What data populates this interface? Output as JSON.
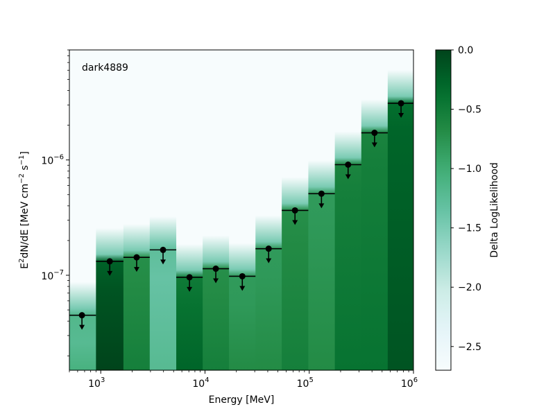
{
  "chart_data": {
    "type": "bar",
    "annotation": "dark4889",
    "xlabel": "Energy [MeV]",
    "ylabel_parts": {
      "pre": "E",
      "sup1": "2",
      "mid": "dN/dE [MeV cm",
      "sup2": "−2",
      "mid2": " s",
      "sup3": "−1",
      "post": "]"
    },
    "x_scale": "log",
    "y_scale": "log",
    "xlim": [
      500,
      1000000
    ],
    "ylim": [
      1.5e-08,
      9e-06
    ],
    "x_ticks": [
      {
        "value": 1000,
        "base": "10",
        "exp": "3"
      },
      {
        "value": 10000,
        "base": "10",
        "exp": "4"
      },
      {
        "value": 100000,
        "base": "10",
        "exp": "5"
      },
      {
        "value": 1000000,
        "base": "10",
        "exp": "6"
      }
    ],
    "y_ticks": [
      {
        "value": 1e-07,
        "base": "10",
        "exp": "−7"
      },
      {
        "value": 1e-06,
        "base": "10",
        "exp": "−6"
      }
    ],
    "grid": false,
    "legend": "none",
    "upper_limits": {
      "series_marker": "upper-limit",
      "bins": [
        {
          "e_min": 500,
          "e_max": 900,
          "e_center": 660,
          "ul": 4.5e-08
        },
        {
          "e_min": 900,
          "e_max": 1650,
          "e_center": 1220,
          "ul": 1.32e-07
        },
        {
          "e_min": 1650,
          "e_max": 2950,
          "e_center": 2210,
          "ul": 1.43e-07
        },
        {
          "e_min": 2950,
          "e_max": 5300,
          "e_center": 3960,
          "ul": 1.66e-07
        },
        {
          "e_min": 5300,
          "e_max": 9500,
          "e_center": 7100,
          "ul": 9.6e-08
        },
        {
          "e_min": 9500,
          "e_max": 17000,
          "e_center": 12700,
          "ul": 1.14e-07
        },
        {
          "e_min": 17000,
          "e_max": 30500,
          "e_center": 22800,
          "ul": 9.8e-08
        },
        {
          "e_min": 30500,
          "e_max": 54500,
          "e_center": 40800,
          "ul": 1.7e-07
        },
        {
          "e_min": 54500,
          "e_max": 98000,
          "e_center": 73000,
          "ul": 3.65e-07
        },
        {
          "e_min": 98000,
          "e_max": 176000,
          "e_center": 131000,
          "ul": 5.1e-07
        },
        {
          "e_min": 176000,
          "e_max": 316000,
          "e_center": 236000,
          "ul": 9.1e-07
        },
        {
          "e_min": 316000,
          "e_max": 566000,
          "e_center": 423000,
          "ul": 1.72e-06
        },
        {
          "e_min": 566000,
          "e_max": 1000000,
          "e_center": 760000,
          "ul": 3.1e-06
        }
      ]
    },
    "likelihood_profile": {
      "description_values": "Delta LogLikelihood per bin vs flux",
      "bin_base_intensity": [
        0.55,
        0.95,
        0.75,
        0.5,
        0.85,
        0.75,
        0.7,
        0.7,
        0.75,
        0.7,
        0.8,
        0.8,
        0.9
      ],
      "bin_ts_curvature": [
        1.0,
        0.9,
        0.95,
        1.1,
        0.85,
        0.9,
        0.9,
        0.9,
        1.0,
        1.0,
        1.0,
        1.0,
        1.0
      ]
    },
    "colorbar": {
      "label": "Delta LogLikelihood",
      "min": -2.7,
      "max": 0.0,
      "ticks": [
        "0.0",
        "−0.5",
        "−1.0",
        "−1.5",
        "−2.0",
        "−2.5"
      ],
      "tick_values": [
        0.0,
        -0.5,
        -1.0,
        -1.5,
        -2.0,
        -2.5
      ],
      "colormap": "BuGn",
      "colors": [
        "#f7fcfd",
        "#e5f5f9",
        "#ccece6",
        "#99d8c9",
        "#66c2a4",
        "#41ae76",
        "#238b45",
        "#006d2c",
        "#00441b"
      ]
    }
  }
}
